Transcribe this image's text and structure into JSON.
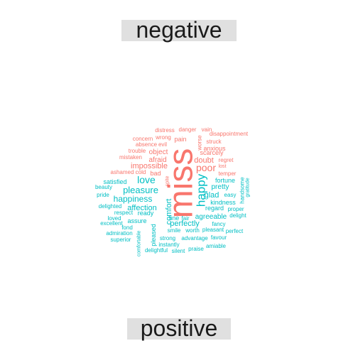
{
  "chart_data": {
    "type": "wordcloud",
    "groups": [
      {
        "name": "negative",
        "color": "#F8766D"
      },
      {
        "name": "positive",
        "color": "#00BFC4"
      }
    ],
    "words": [
      {
        "text": "miss",
        "group": "negative",
        "freq": 100,
        "rotate": true
      },
      {
        "text": "poor",
        "group": "negative",
        "freq": 25
      },
      {
        "text": "doubt",
        "group": "negative",
        "freq": 18
      },
      {
        "text": "impossible",
        "group": "negative",
        "freq": 16
      },
      {
        "text": "object",
        "group": "negative",
        "freq": 14
      },
      {
        "text": "afraid",
        "group": "negative",
        "freq": 14
      },
      {
        "text": "anxious",
        "group": "negative",
        "freq": 14
      },
      {
        "text": "scarcely",
        "group": "negative",
        "freq": 13
      },
      {
        "text": "temper",
        "group": "negative",
        "freq": 12
      },
      {
        "text": "pain",
        "group": "negative",
        "freq": 12
      },
      {
        "text": "bad",
        "group": "negative",
        "freq": 12
      },
      {
        "text": "evil",
        "group": "negative",
        "freq": 11
      },
      {
        "text": "distress",
        "group": "negative",
        "freq": 11
      },
      {
        "text": "danger",
        "group": "negative",
        "freq": 11
      },
      {
        "text": "vain",
        "group": "negative",
        "freq": 10
      },
      {
        "text": "disappointment",
        "group": "negative",
        "freq": 10
      },
      {
        "text": "concern",
        "group": "negative",
        "freq": 10
      },
      {
        "text": "wrong",
        "group": "negative",
        "freq": 10
      },
      {
        "text": "worse",
        "group": "negative",
        "freq": 10,
        "rotate": true
      },
      {
        "text": "struck",
        "group": "negative",
        "freq": 10
      },
      {
        "text": "absence",
        "group": "negative",
        "freq": 10
      },
      {
        "text": "trouble",
        "group": "negative",
        "freq": 10
      },
      {
        "text": "mistaken",
        "group": "negative",
        "freq": 9
      },
      {
        "text": "regret",
        "group": "negative",
        "freq": 10
      },
      {
        "text": "lost",
        "group": "negative",
        "freq": 9
      },
      {
        "text": "ashamed",
        "group": "negative",
        "freq": 10
      },
      {
        "text": "cold",
        "group": "negative",
        "freq": 10
      },
      {
        "text": "spite",
        "group": "negative",
        "freq": 9,
        "rotate": true
      },
      {
        "text": "happy",
        "group": "positive",
        "freq": 50,
        "rotate": true
      },
      {
        "text": "love",
        "group": "positive",
        "freq": 30
      },
      {
        "text": "pleasure",
        "group": "positive",
        "freq": 28
      },
      {
        "text": "happiness",
        "group": "positive",
        "freq": 22
      },
      {
        "text": "affection",
        "group": "positive",
        "freq": 17
      },
      {
        "text": "comfort",
        "group": "positive",
        "freq": 16,
        "rotate": true
      },
      {
        "text": "glad",
        "group": "positive",
        "freq": 16
      },
      {
        "text": "pretty",
        "group": "positive",
        "freq": 15
      },
      {
        "text": "fortune",
        "group": "positive",
        "freq": 13
      },
      {
        "text": "agreeable",
        "group": "positive",
        "freq": 14
      },
      {
        "text": "kindness",
        "group": "positive",
        "freq": 13
      },
      {
        "text": "regard",
        "group": "positive",
        "freq": 13
      },
      {
        "text": "perfectly",
        "group": "positive",
        "freq": 14
      },
      {
        "text": "satisfied",
        "group": "positive",
        "freq": 12
      },
      {
        "text": "ready",
        "group": "positive",
        "freq": 12
      },
      {
        "text": "respect",
        "group": "positive",
        "freq": 11
      },
      {
        "text": "assure",
        "group": "positive",
        "freq": 12
      },
      {
        "text": "fine",
        "group": "positive",
        "freq": 12
      },
      {
        "text": "fair",
        "group": "positive",
        "freq": 11
      },
      {
        "text": "easy",
        "group": "positive",
        "freq": 10
      },
      {
        "text": "handsome",
        "group": "positive",
        "freq": 10,
        "rotate": true
      },
      {
        "text": "gratitude",
        "group": "positive",
        "freq": 9,
        "rotate": true
      },
      {
        "text": "proper",
        "group": "positive",
        "freq": 10
      },
      {
        "text": "delight",
        "group": "positive",
        "freq": 10
      },
      {
        "text": "beauty",
        "group": "positive",
        "freq": 10
      },
      {
        "text": "pride",
        "group": "positive",
        "freq": 10
      },
      {
        "text": "delighted",
        "group": "positive",
        "freq": 10
      },
      {
        "text": "loved",
        "group": "positive",
        "freq": 10
      },
      {
        "text": "excellent",
        "group": "positive",
        "freq": 9
      },
      {
        "text": "fond",
        "group": "positive",
        "freq": 9
      },
      {
        "text": "admiration",
        "group": "positive",
        "freq": 9
      },
      {
        "text": "superior",
        "group": "positive",
        "freq": 9
      },
      {
        "text": "pleased",
        "group": "positive",
        "freq": 11,
        "rotate": true
      },
      {
        "text": "comfortable",
        "group": "positive",
        "freq": 8,
        "rotate": true
      },
      {
        "text": "smile",
        "group": "positive",
        "freq": 10
      },
      {
        "text": "worth",
        "group": "positive",
        "freq": 10
      },
      {
        "text": "pleasant",
        "group": "positive",
        "freq": 10
      },
      {
        "text": "fancy",
        "group": "positive",
        "freq": 9
      },
      {
        "text": "perfect",
        "group": "positive",
        "freq": 9
      },
      {
        "text": "strong",
        "group": "positive",
        "freq": 10
      },
      {
        "text": "advantage",
        "group": "positive",
        "freq": 10
      },
      {
        "text": "favour",
        "group": "positive",
        "freq": 9
      },
      {
        "text": "instantly",
        "group": "positive",
        "freq": 9
      },
      {
        "text": "amiable",
        "group": "positive",
        "freq": 9
      },
      {
        "text": "delightful",
        "group": "positive",
        "freq": 9
      },
      {
        "text": "silent",
        "group": "positive",
        "freq": 9
      },
      {
        "text": "praise",
        "group": "positive",
        "freq": 9
      }
    ]
  }
}
